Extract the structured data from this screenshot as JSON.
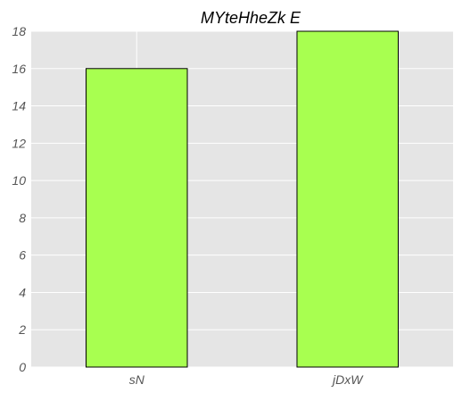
{
  "chart_data": {
    "type": "bar",
    "title": "MYteHheZk E",
    "xlabel": "",
    "ylabel": "",
    "categories": [
      "sN",
      "jDxW"
    ],
    "values": [
      16,
      18
    ],
    "ylim": [
      0,
      18
    ],
    "yticks": [
      0,
      2,
      4,
      6,
      8,
      10,
      12,
      14,
      16,
      18
    ],
    "grid": true,
    "colors": {
      "bar_fill": "#a8ff50",
      "bar_edge": "#000000",
      "plot_background": "#e5e5e5",
      "grid": "#ffffff",
      "tick_text": "#555555"
    }
  }
}
